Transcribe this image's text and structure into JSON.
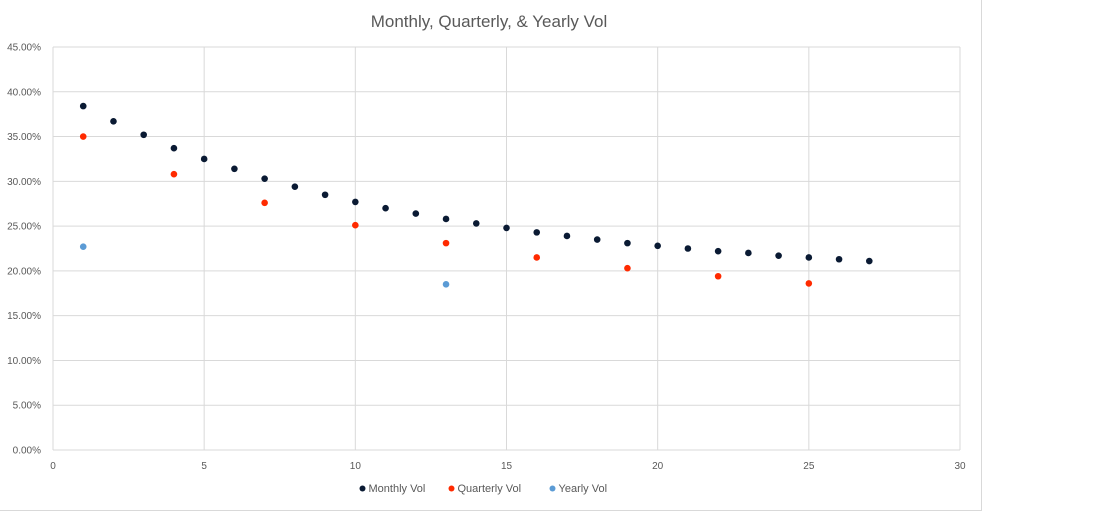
{
  "chart_data": {
    "type": "scatter",
    "title": "Monthly, Quarterly, & Yearly Vol",
    "xlabel": "",
    "ylabel": "",
    "xlim": [
      0,
      30
    ],
    "ylim": [
      0,
      0.45
    ],
    "x_ticks": [
      0,
      5,
      10,
      15,
      20,
      25,
      30
    ],
    "x_tick_labels": [
      "0",
      "5",
      "10",
      "15",
      "20",
      "25",
      "30"
    ],
    "y_ticks": [
      0,
      0.05,
      0.1,
      0.15,
      0.2,
      0.25,
      0.3,
      0.35,
      0.4,
      0.45
    ],
    "y_tick_labels": [
      "0.00%",
      "5.00%",
      "10.00%",
      "15.00%",
      "20.00%",
      "25.00%",
      "30.00%",
      "35.00%",
      "40.00%",
      "45.00%"
    ],
    "grid": true,
    "legend_position": "bottom",
    "series": [
      {
        "name": "Monthly Vol",
        "color": "#0a1a33",
        "x": [
          1,
          2,
          3,
          4,
          5,
          6,
          7,
          8,
          9,
          10,
          11,
          12,
          13,
          14,
          15,
          16,
          17,
          18,
          19,
          20,
          21,
          22,
          23,
          24,
          25,
          26,
          27
        ],
        "y": [
          0.384,
          0.367,
          0.352,
          0.337,
          0.325,
          0.314,
          0.303,
          0.294,
          0.285,
          0.277,
          0.27,
          0.264,
          0.258,
          0.253,
          0.248,
          0.243,
          0.239,
          0.235,
          0.231,
          0.228,
          0.225,
          0.222,
          0.22,
          0.217,
          0.215,
          0.213,
          0.211
        ]
      },
      {
        "name": "Quarterly Vol",
        "color": "#ff2a00",
        "x": [
          1,
          4,
          7,
          10,
          13,
          16,
          19,
          22,
          25
        ],
        "y": [
          0.35,
          0.308,
          0.276,
          0.251,
          0.231,
          0.215,
          0.203,
          0.194,
          0.186
        ]
      },
      {
        "name": "Yearly Vol",
        "color": "#5b9bd5",
        "x": [
          1,
          13
        ],
        "y": [
          0.227,
          0.185
        ]
      }
    ]
  }
}
